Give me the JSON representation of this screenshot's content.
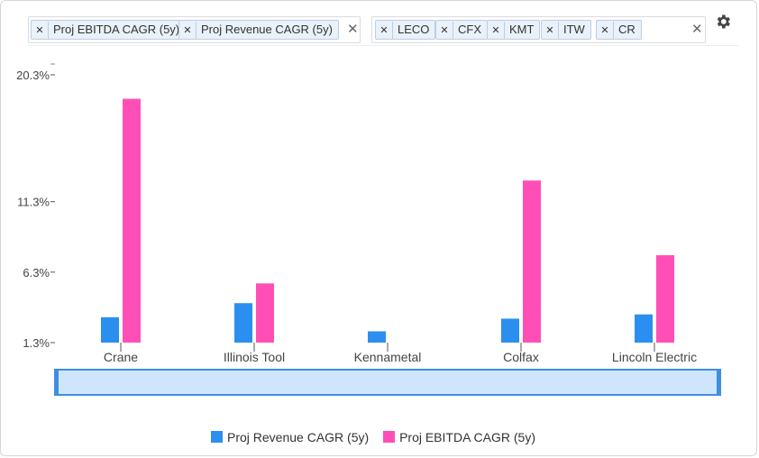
{
  "filters": {
    "metrics": [
      {
        "remove_icon": "✕",
        "label": "Proj EBITDA CAGR (5y)"
      },
      {
        "remove_icon": "✕",
        "label": "Proj Revenue CAGR (5y)"
      }
    ],
    "tickers": [
      {
        "remove_icon": "✕",
        "label": "LECO"
      },
      {
        "remove_icon": "✕",
        "label": "CFX"
      },
      {
        "remove_icon": "✕",
        "label": "KMT"
      },
      {
        "remove_icon": "✕",
        "label": "ITW"
      },
      {
        "remove_icon": "✕",
        "label": "CR"
      }
    ],
    "clear_icon": "✕",
    "settings_icon": "gear-icon"
  },
  "chart_data": {
    "type": "bar",
    "categories": [
      "Crane",
      "Illinois Tool",
      "Kennametal",
      "Colfax",
      "Lincoln Electric"
    ],
    "series": [
      {
        "name": "Proj Revenue CAGR (5y)",
        "color": "#2b8ff0",
        "values": [
          3.1,
          4.1,
          2.1,
          3.0,
          3.3
        ]
      },
      {
        "name": "Proj EBITDA CAGR (5y)",
        "color": "#ff4fb7",
        "values": [
          18.6,
          5.5,
          null,
          12.8,
          7.5
        ]
      }
    ],
    "y_ticks": [
      {
        "value": 1.3,
        "label": "1.3%"
      },
      {
        "value": 6.3,
        "label": "6.3%"
      },
      {
        "value": 11.3,
        "label": "11.3%"
      },
      {
        "value": 20.3,
        "label": "20.3%"
      }
    ],
    "ylim": [
      1.3,
      20.3
    ],
    "legend_position": "bottom-center"
  }
}
